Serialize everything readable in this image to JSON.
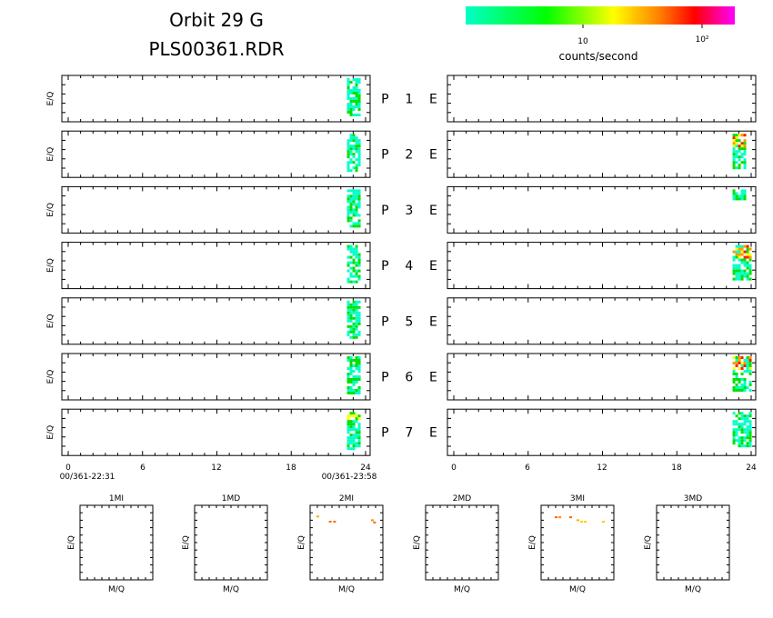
{
  "header": {
    "title_line1": "Orbit 29 G",
    "title_line2": "PLS00361.RDR"
  },
  "colorbar": {
    "label": "counts/second",
    "tick_labels": [
      "10",
      "10²"
    ],
    "gradient_colors": [
      "#00ffc8",
      "#00ff00",
      "#ffff00",
      "#ff8000",
      "#ff0000",
      "#ff00ff"
    ]
  },
  "ylabel": "E/Q",
  "bottom_xlabel": "M/Q",
  "time_axis": {
    "tick_labels": [
      "0",
      "6",
      "12",
      "18",
      "24"
    ],
    "start_label": "00/361-22:31",
    "end_label": "00/361-23:58"
  },
  "chart_data": {
    "type": "heatmap",
    "x_range": [
      0,
      24
    ],
    "rows": [
      {
        "label": "P 1 E",
        "p_columns": [
          22.5,
          23.5
        ],
        "p_colors": [
          "cyan",
          "green"
        ],
        "e_columns": [],
        "e_colors": []
      },
      {
        "label": "P 2 E",
        "p_columns": [
          22.5,
          23.5
        ],
        "p_colors": [
          "cyan",
          "green"
        ],
        "e_columns": [
          22.5,
          23.5
        ],
        "e_colors": [
          "cyan",
          "green",
          "yellow",
          "orange",
          "red"
        ]
      },
      {
        "label": "P 3 E",
        "p_columns": [
          22.5,
          23.5
        ],
        "p_colors": [
          "cyan",
          "green"
        ],
        "e_columns": [
          22.5,
          23.5
        ],
        "e_colors": [
          "cyan"
        ]
      },
      {
        "label": "P 4 E",
        "p_columns": [
          22.5,
          23.5
        ],
        "p_colors": [
          "cyan",
          "green"
        ],
        "e_columns": [
          22.5,
          24
        ],
        "e_colors": [
          "cyan",
          "green",
          "yellow",
          "orange",
          "red"
        ]
      },
      {
        "label": "P 5 E",
        "p_columns": [
          22.5,
          23.5
        ],
        "p_colors": [
          "cyan",
          "green"
        ],
        "e_columns": [],
        "e_colors": []
      },
      {
        "label": "P 6 E",
        "p_columns": [
          22.5,
          23.5
        ],
        "p_colors": [
          "cyan",
          "green"
        ],
        "e_columns": [
          22.5,
          24
        ],
        "e_colors": [
          "cyan",
          "green",
          "yellow",
          "orange",
          "red"
        ]
      },
      {
        "label": "P 7 E",
        "p_columns": [
          22.5,
          23.5
        ],
        "p_colors": [
          "cyan",
          "green",
          "yellow"
        ],
        "e_columns": [
          22.5,
          24
        ],
        "e_colors": [
          "cyan",
          "green"
        ]
      }
    ],
    "mq_panels": [
      {
        "title": "1MI",
        "points": []
      },
      {
        "title": "1MD",
        "points": []
      },
      {
        "title": "2MI",
        "points": [
          [
            0.1,
            0.85,
            "#ffaa00"
          ],
          [
            0.27,
            0.78,
            "#ff6600"
          ],
          [
            0.33,
            0.78,
            "#ff6600"
          ],
          [
            0.85,
            0.8,
            "#ff8800"
          ],
          [
            0.88,
            0.77,
            "#ff6600"
          ]
        ]
      },
      {
        "title": "2MD",
        "points": []
      },
      {
        "title": "3MI",
        "points": [
          [
            0.2,
            0.84,
            "#ff6600"
          ],
          [
            0.25,
            0.84,
            "#ff8800"
          ],
          [
            0.4,
            0.84,
            "#ff6600"
          ],
          [
            0.5,
            0.8,
            "#ffaa00"
          ],
          [
            0.55,
            0.78,
            "#ffcc00"
          ],
          [
            0.6,
            0.78,
            "#ffcc00"
          ],
          [
            0.85,
            0.78,
            "#ffcc00"
          ]
        ]
      },
      {
        "title": "3MD",
        "points": []
      }
    ]
  }
}
